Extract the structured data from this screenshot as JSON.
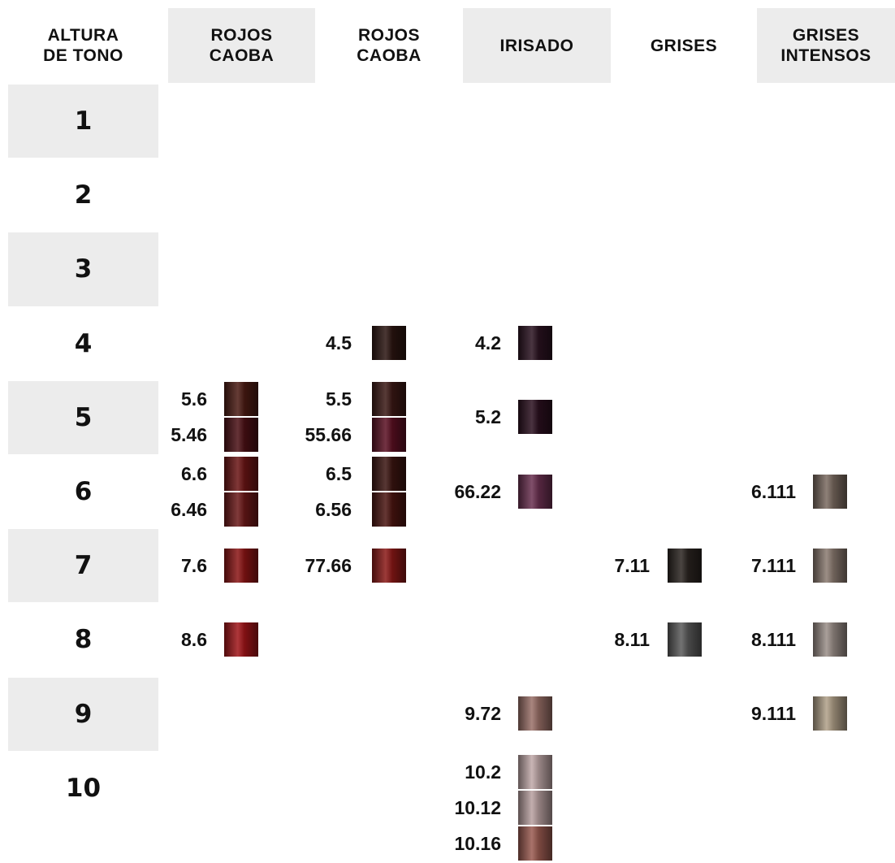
{
  "header": {
    "columns": [
      [
        "ALTURA",
        "DE TONO"
      ],
      [
        "ROJOS",
        "CAOBA"
      ],
      [
        "ROJOS",
        "CAOBA"
      ],
      [
        "IRISADO"
      ],
      [
        "GRISES"
      ],
      [
        "GRISES",
        "INTENSOS"
      ]
    ]
  },
  "rows": [
    {
      "label": "1",
      "cells": [
        [],
        [],
        [],
        [],
        []
      ]
    },
    {
      "label": "2",
      "cells": [
        [],
        [],
        [],
        [],
        []
      ]
    },
    {
      "label": "3",
      "cells": [
        [],
        [],
        [],
        [],
        []
      ]
    },
    {
      "label": "4",
      "cells": [
        [],
        [
          {
            "code": "4.5",
            "color": "#2a1410"
          }
        ],
        [
          {
            "code": "4.2",
            "color": "#2a1220"
          }
        ],
        [],
        []
      ]
    },
    {
      "label": "5",
      "cells": [
        [
          {
            "code": "5.6",
            "color": "#4a1a12"
          },
          {
            "code": "5.46",
            "color": "#4a0f14"
          }
        ],
        [
          {
            "code": "5.5",
            "color": "#3a1814"
          },
          {
            "code": "55.66",
            "color": "#5a0f22"
          }
        ],
        [
          {
            "code": "5.2",
            "color": "#2a0f1e"
          }
        ],
        [],
        []
      ]
    },
    {
      "label": "6",
      "cells": [
        [
          {
            "code": "6.6",
            "color": "#6a1414"
          },
          {
            "code": "6.46",
            "color": "#6a1818"
          }
        ],
        [
          {
            "code": "6.5",
            "color": "#3a1410"
          },
          {
            "code": "6.56",
            "color": "#4a1410"
          }
        ],
        [
          {
            "code": "66.22",
            "color": "#6a3050"
          }
        ],
        [],
        [
          {
            "code": "6.111",
            "color": "#7a6a60"
          }
        ]
      ]
    },
    {
      "label": "7",
      "cells": [
        [
          {
            "code": "7.6",
            "color": "#8a1414"
          }
        ],
        [
          {
            "code": "77.66",
            "color": "#8a1816"
          }
        ],
        [],
        [
          {
            "code": "7.11",
            "color": "#2a2420"
          }
        ],
        [
          {
            "code": "7.111",
            "color": "#8a7a70"
          }
        ]
      ]
    },
    {
      "label": "8",
      "cells": [
        [
          {
            "code": "8.6",
            "color": "#a01418"
          }
        ],
        [],
        [],
        [
          {
            "code": "8.11",
            "color": "#5a5a5a"
          }
        ],
        [
          {
            "code": "8.111",
            "color": "#9a8e88"
          }
        ]
      ]
    },
    {
      "label": "9",
      "cells": [
        [],
        [],
        [
          {
            "code": "9.72",
            "color": "#9a7068"
          }
        ],
        [],
        [
          {
            "code": "9.111",
            "color": "#b0a088"
          }
        ]
      ]
    },
    {
      "label": "10",
      "cells": [
        [],
        [],
        [
          {
            "code": "10.2",
            "color": "#c0a8a8"
          },
          {
            "code": "10.12",
            "color": "#b8a0a0"
          },
          {
            "code": "10.16",
            "color": "#9a5a50"
          }
        ],
        [],
        []
      ]
    }
  ]
}
